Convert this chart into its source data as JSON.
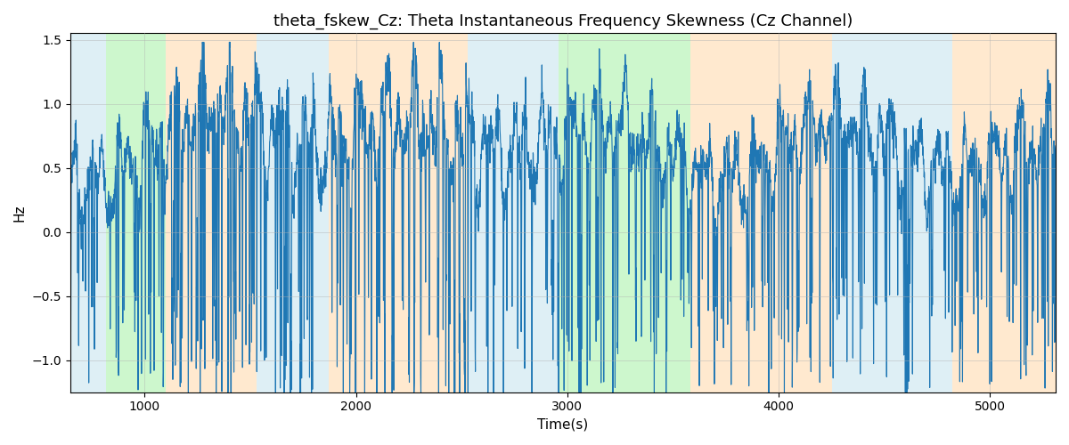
{
  "title": "theta_fskew_Cz: Theta Instantaneous Frequency Skewness (Cz Channel)",
  "xlabel": "Time(s)",
  "ylabel": "Hz",
  "xlim": [
    648,
    5310
  ],
  "ylim": [
    -1.25,
    1.55
  ],
  "yticks": [
    -1.0,
    -0.5,
    0.0,
    0.5,
    1.0,
    1.5
  ],
  "xticks": [
    1000,
    2000,
    3000,
    4000,
    5000
  ],
  "bg_regions": [
    {
      "xmin": 648,
      "xmax": 815,
      "color": "#add8e6",
      "alpha": 0.4
    },
    {
      "xmin": 815,
      "xmax": 1100,
      "color": "#90ee90",
      "alpha": 0.45
    },
    {
      "xmin": 1100,
      "xmax": 1530,
      "color": "#ffd8a8",
      "alpha": 0.55
    },
    {
      "xmin": 1530,
      "xmax": 1870,
      "color": "#add8e6",
      "alpha": 0.4
    },
    {
      "xmin": 1870,
      "xmax": 2530,
      "color": "#ffd8a8",
      "alpha": 0.55
    },
    {
      "xmin": 2530,
      "xmax": 2960,
      "color": "#add8e6",
      "alpha": 0.4
    },
    {
      "xmin": 2960,
      "xmax": 3580,
      "color": "#90ee90",
      "alpha": 0.45
    },
    {
      "xmin": 3580,
      "xmax": 4250,
      "color": "#ffd8a8",
      "alpha": 0.55
    },
    {
      "xmin": 4250,
      "xmax": 4820,
      "color": "#add8e6",
      "alpha": 0.4
    },
    {
      "xmin": 4820,
      "xmax": 5310,
      "color": "#ffd8a8",
      "alpha": 0.55
    }
  ],
  "line_color": "#1f77b4",
  "line_width": 0.8,
  "grid_color": "#b0b0b0",
  "grid_alpha": 0.6,
  "grid_linestyle": "-",
  "grid_linewidth": 0.5,
  "title_fontsize": 13,
  "label_fontsize": 11,
  "tick_fontsize": 10
}
